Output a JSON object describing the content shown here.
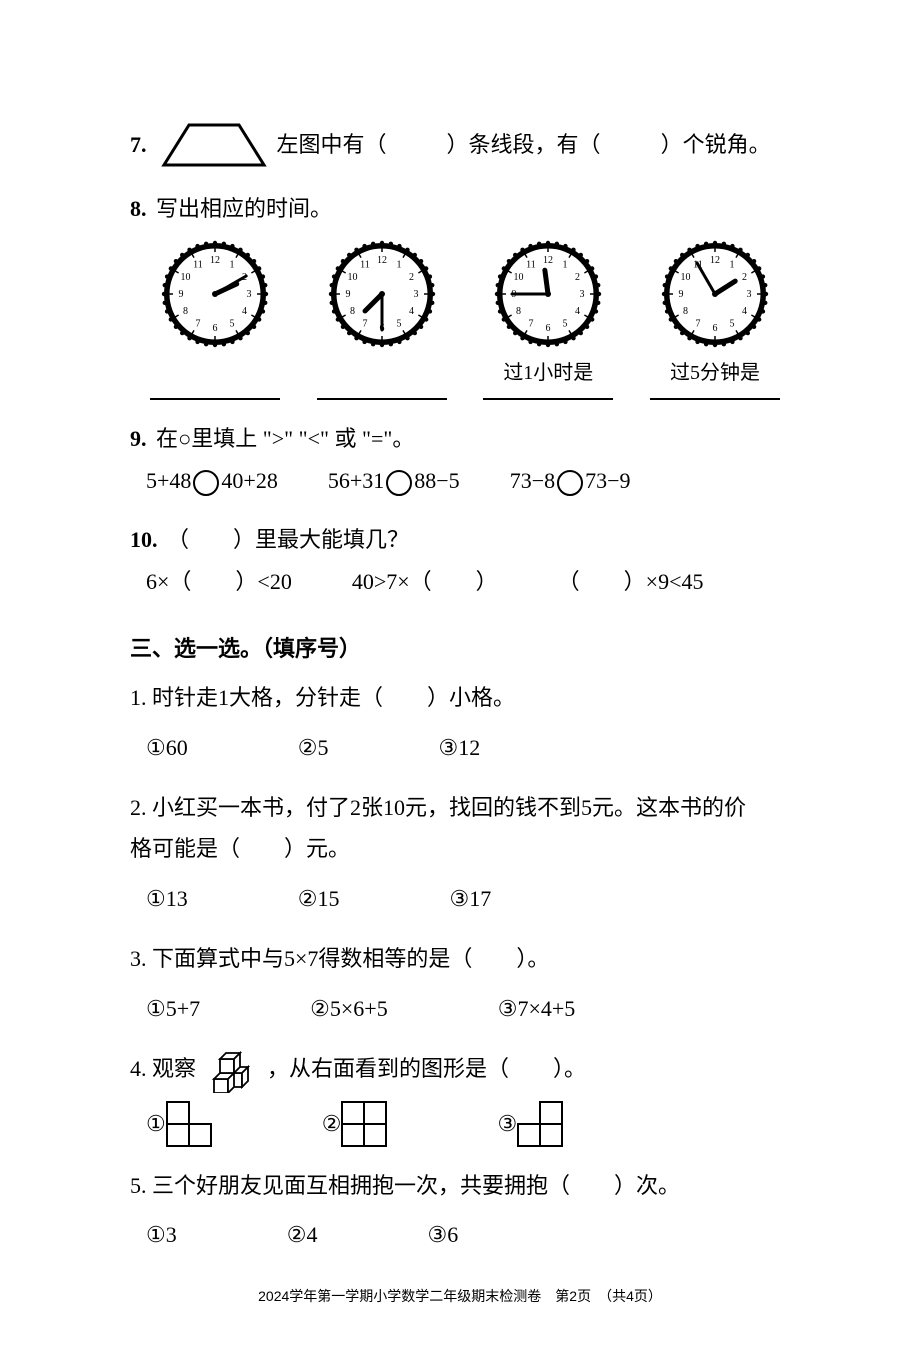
{
  "q7": {
    "num": "7.",
    "text_a": "左图中有（",
    "text_b": "）条线段，有（",
    "text_c": "）个锐角。",
    "trapezoid": {
      "stroke": "#000000",
      "stroke_width": 3
    }
  },
  "q8": {
    "num": "8.",
    "text": "写出相应的时间。",
    "clocks": [
      {
        "hour": 2,
        "minute": 10,
        "caption": ""
      },
      {
        "hour": 7,
        "minute": 30,
        "caption": ""
      },
      {
        "hour": 11,
        "minute": 45,
        "caption": "过1小时是"
      },
      {
        "hour": 1,
        "minute": 55,
        "caption": "过5分钟是"
      }
    ],
    "clock_style": {
      "radius": 48,
      "face": "#ffffff",
      "border": "#000000",
      "border_width": 5,
      "number_fontsize": 10,
      "hand_color": "#000000",
      "hour_hand_len": 24,
      "min_hand_len": 36,
      "hour_hand_width": 5,
      "min_hand_width": 3
    }
  },
  "q9": {
    "num": "9.",
    "text": "在○里填上 \">\" \"<\" 或 \"=\"。",
    "items": [
      {
        "l": "5+48",
        "r": "40+28"
      },
      {
        "l": "56+31",
        "r": "88−5"
      },
      {
        "l": "73−8",
        "r": "73−9"
      }
    ]
  },
  "q10": {
    "num": "10.",
    "text": "（　　）里最大能填几？",
    "items": [
      "6×（　　）<20",
      "40>7×（　　）",
      "（　　）×9<45"
    ]
  },
  "section3": {
    "title": "三、选一选。（填序号）"
  },
  "s3q1": {
    "text": "1. 时针走1大格，分针走（　　）小格。",
    "opts": [
      "60",
      "5",
      "12"
    ]
  },
  "s3q2": {
    "text_a": "2. 小红买一本书，付了2张10元，找回的钱不到5元。这本书的价",
    "text_b": "格可能是（　　）元。",
    "opts": [
      "13",
      "15",
      "17"
    ]
  },
  "s3q3": {
    "text": "3. 下面算式中与5×7得数相等的是（　　）。",
    "opts": [
      "5+7",
      "5×6+5",
      "7×4+5"
    ]
  },
  "s3q4": {
    "text_a": "4. 观察 ",
    "text_b": "，从右面看到的图形是（　　）。",
    "cube_color": "#ffffff",
    "cube_stroke": "#000000",
    "opts": [
      {
        "grid": [
          [
            1,
            0
          ],
          [
            1,
            1
          ]
        ]
      },
      {
        "grid": [
          [
            1,
            1
          ],
          [
            1,
            1
          ]
        ]
      },
      {
        "grid": [
          [
            0,
            1
          ],
          [
            1,
            1
          ]
        ]
      }
    ]
  },
  "s3q5": {
    "text": "5. 三个好朋友见面互相拥抱一次，共要拥抱（　　）次。",
    "opts": [
      "3",
      "4",
      "6"
    ]
  },
  "opt_labels": [
    "①",
    "②",
    "③"
  ],
  "footer": "2024学年第一学期小学数学二年级期末检测卷　第2页　（共4页）",
  "colors": {
    "text": "#000000",
    "bg": "#ffffff"
  }
}
